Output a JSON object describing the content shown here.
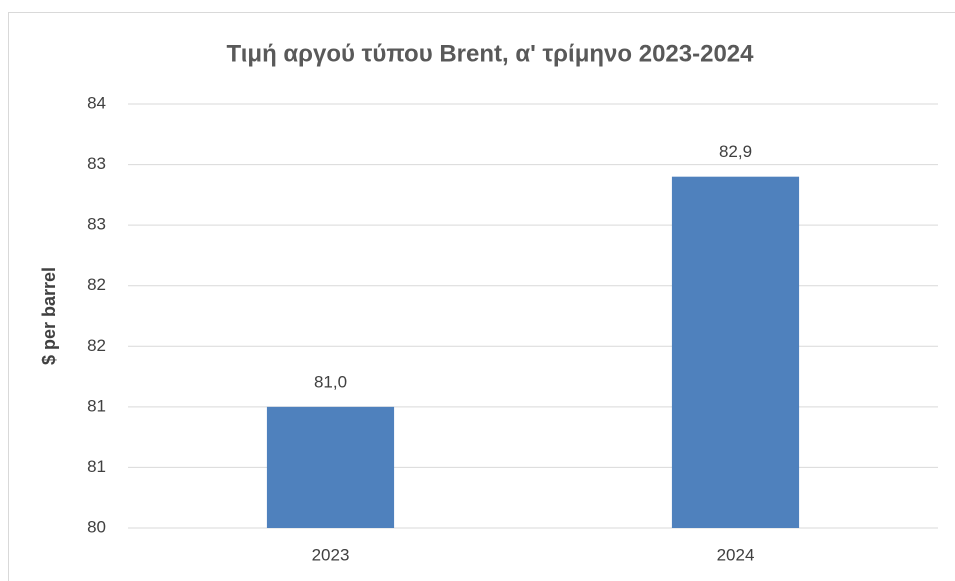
{
  "chart_data": {
    "type": "bar",
    "title": "Τιμή αργού τύπου Brent, α' τρίμηνο 2023-2024",
    "y_axis_label": "$ per barrel",
    "categories": [
      "2023",
      "2024"
    ],
    "values": [
      81.0,
      82.9
    ],
    "value_labels": [
      "81,0",
      "82,9"
    ],
    "color": "#4f81bd",
    "ylim": [
      80,
      83.5
    ],
    "yticks": [
      80,
      {
        "value": 80.5,
        "label": "81"
      },
      81,
      {
        "value": 81.5,
        "label": "82"
      },
      82,
      {
        "value": 82.5,
        "label": "83"
      },
      83,
      {
        "value": 83.5,
        "label": "84"
      }
    ],
    "grid": true
  }
}
